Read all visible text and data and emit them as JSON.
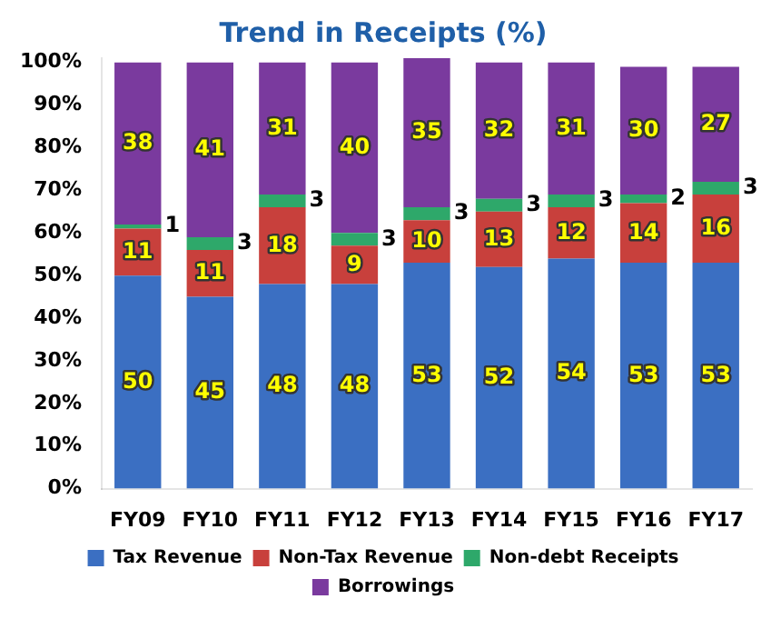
{
  "chart_data": {
    "type": "bar",
    "stacked": true,
    "title": "Trend in Receipts (%)",
    "categories": [
      "FY09",
      "FY10",
      "FY11",
      "FY12",
      "FY13",
      "FY14",
      "FY15",
      "FY16",
      "FY17"
    ],
    "series": [
      {
        "name": "Tax Revenue",
        "color": "#3b6fc2",
        "values": [
          50,
          45,
          48,
          48,
          53,
          52,
          54,
          53,
          53
        ]
      },
      {
        "name": "Non-Tax Revenue",
        "color": "#c8403c",
        "values": [
          11,
          11,
          18,
          9,
          10,
          13,
          12,
          14,
          16
        ]
      },
      {
        "name": "Non-debt Receipts",
        "color": "#2ea86a",
        "values": [
          1,
          3,
          3,
          3,
          3,
          3,
          3,
          2,
          3
        ]
      },
      {
        "name": "Borrowings",
        "color": "#7a3a9e",
        "values": [
          38,
          41,
          31,
          40,
          35,
          32,
          31,
          30,
          27
        ]
      }
    ],
    "ylim": [
      0,
      101
    ],
    "yticks": [
      {
        "value": 0,
        "label": "0%"
      },
      {
        "value": 10,
        "label": "10%"
      },
      {
        "value": 20,
        "label": "20%"
      },
      {
        "value": 30,
        "label": "30%"
      },
      {
        "value": 40,
        "label": "40%"
      },
      {
        "value": 50,
        "label": "50%"
      },
      {
        "value": 60,
        "label": "60%"
      },
      {
        "value": 70,
        "label": "70%"
      },
      {
        "value": 80,
        "label": "80%"
      },
      {
        "value": 90,
        "label": "90%"
      },
      {
        "value": 100,
        "label": "100%"
      }
    ],
    "data_labels": true,
    "legend": "bottom",
    "grid": false
  }
}
